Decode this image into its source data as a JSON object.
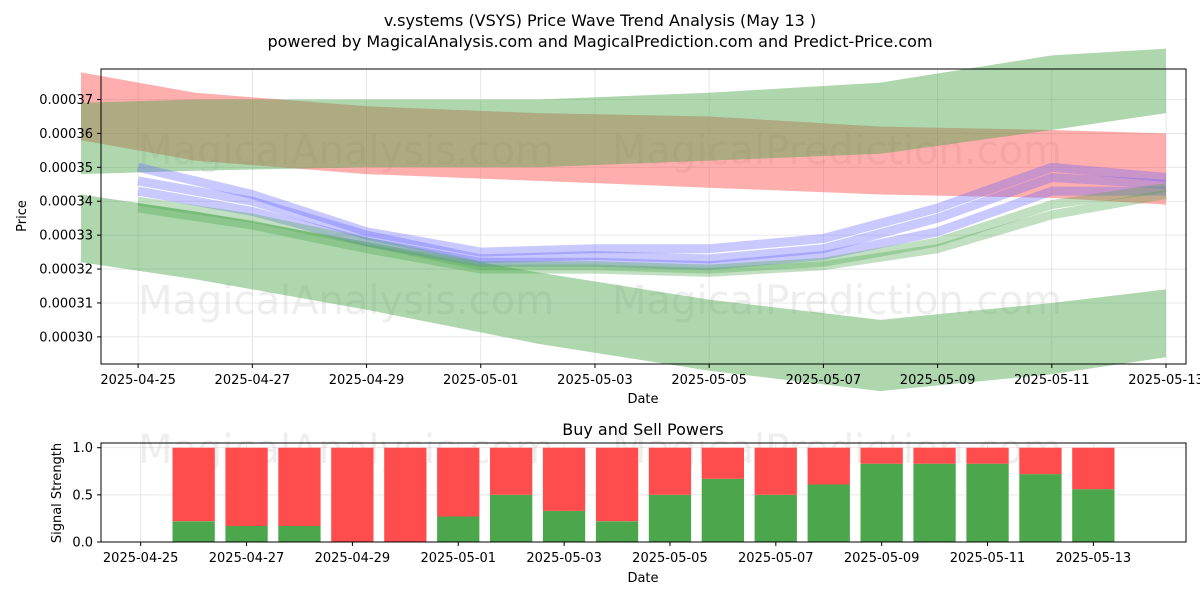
{
  "header": {
    "title": "v.systems (VSYS) Price Wave Trend Analysis (May 13 )",
    "subtitle": "powered by MagicalAnalysis.com and MagicalPrediction.com and Predict-Price.com"
  },
  "watermarks": [
    "MagicalAnalysis.com",
    "MagicalPrediction.com"
  ],
  "colors": {
    "red": "#ff4c4c",
    "green": "#4ca64c",
    "blue": "#6464ff",
    "grid": "#e0e0e0"
  },
  "chart_data": [
    {
      "type": "line",
      "title": "",
      "xlabel": "Date",
      "ylabel": "Price",
      "x_ticks": [
        "2025-04-25",
        "2025-04-27",
        "2025-04-29",
        "2025-05-01",
        "2025-05-03",
        "2025-05-05",
        "2025-05-07",
        "2025-05-09",
        "2025-05-11",
        "2025-05-13"
      ],
      "y_ticks": [
        "0.00030",
        "0.00031",
        "0.00032",
        "0.00033",
        "0.00034",
        "0.00035",
        "0.00036",
        "0.00037"
      ],
      "xlim": [
        "2025-04-24",
        "2025-05-13"
      ],
      "ylim": [
        0.000292,
        0.000379
      ],
      "grid": true,
      "bands": [
        {
          "color": "red",
          "x": [
            "2025-04-24",
            "2025-04-26",
            "2025-04-29",
            "2025-05-02",
            "2025-05-05",
            "2025-05-08",
            "2025-05-11",
            "2025-05-13"
          ],
          "upper": [
            0.000378,
            0.000372,
            0.000368,
            0.000366,
            0.000365,
            0.000362,
            0.000361,
            0.00036
          ],
          "lower": [
            0.000358,
            0.000352,
            0.000348,
            0.000346,
            0.000344,
            0.000342,
            0.000341,
            0.000339
          ]
        },
        {
          "color": "green",
          "x": [
            "2025-04-24",
            "2025-04-26",
            "2025-04-29",
            "2025-05-02",
            "2025-05-05",
            "2025-05-08",
            "2025-05-11",
            "2025-05-13"
          ],
          "upper": [
            0.000369,
            0.00037,
            0.00037,
            0.00037,
            0.000372,
            0.000375,
            0.000383,
            0.000385
          ],
          "lower": [
            0.000348,
            0.000349,
            0.00035,
            0.00035,
            0.000352,
            0.000354,
            0.000361,
            0.000366
          ]
        },
        {
          "color": "green",
          "x": [
            "2025-04-24",
            "2025-04-26",
            "2025-04-29",
            "2025-05-02",
            "2025-05-05",
            "2025-05-08",
            "2025-05-11",
            "2025-05-13"
          ],
          "upper": [
            0.000342,
            0.000337,
            0.000328,
            0.000319,
            0.000311,
            0.000305,
            0.00031,
            0.000314
          ],
          "lower": [
            0.000322,
            0.000317,
            0.000308,
            0.000298,
            0.00029,
            0.000284,
            0.000289,
            0.000294
          ]
        }
      ],
      "series": [
        {
          "color": "blue",
          "x": [
            "2025-04-25",
            "2025-04-27",
            "2025-04-29",
            "2025-05-01",
            "2025-05-03",
            "2025-05-05",
            "2025-05-07",
            "2025-05-09",
            "2025-05-11",
            "2025-05-13"
          ],
          "values": [
            0.000346,
            0.00034,
            0.00033,
            0.000323,
            0.000324,
            0.000323,
            0.000326,
            0.000335,
            0.000347,
            0.000345
          ]
        },
        {
          "color": "blue",
          "x": [
            "2025-04-25",
            "2025-04-27",
            "2025-04-29",
            "2025-05-01",
            "2025-05-03",
            "2025-05-05",
            "2025-05-07",
            "2025-05-09",
            "2025-05-11",
            "2025-05-13"
          ],
          "values": [
            0.000343,
            0.000337,
            0.000328,
            0.000322,
            0.000322,
            0.000321,
            0.000324,
            0.000331,
            0.000343,
            0.000343
          ]
        },
        {
          "color": "blue",
          "x": [
            "2025-04-25",
            "2025-04-27",
            "2025-04-29",
            "2025-05-01",
            "2025-05-03",
            "2025-05-05",
            "2025-05-07",
            "2025-05-09",
            "2025-05-11",
            "2025-05-13"
          ],
          "values": [
            0.00035,
            0.000342,
            0.000331,
            0.000325,
            0.000326,
            0.000326,
            0.000329,
            0.000338,
            0.00035,
            0.000347
          ]
        },
        {
          "color": "green",
          "x": [
            "2025-04-25",
            "2025-04-27",
            "2025-04-29",
            "2025-05-01",
            "2025-05-03",
            "2025-05-05",
            "2025-05-07",
            "2025-05-09",
            "2025-05-11",
            "2025-05-13"
          ],
          "values": [
            0.00034,
            0.000335,
            0.000328,
            0.000321,
            0.000321,
            0.00032,
            0.000322,
            0.000328,
            0.000339,
            0.000344
          ]
        },
        {
          "color": "green",
          "x": [
            "2025-04-25",
            "2025-04-27",
            "2025-04-29",
            "2025-05-01",
            "2025-05-03",
            "2025-05-05",
            "2025-05-07",
            "2025-05-09",
            "2025-05-11",
            "2025-05-13"
          ],
          "values": [
            0.000338,
            0.000333,
            0.000326,
            0.00032,
            0.00032,
            0.000319,
            0.000321,
            0.000326,
            0.000336,
            0.000342
          ]
        }
      ]
    },
    {
      "type": "bar",
      "title": "Buy and Sell Powers",
      "xlabel": "Date",
      "ylabel": "Signal Strength",
      "x_ticks": [
        "2025-04-25",
        "2025-04-27",
        "2025-04-29",
        "2025-05-01",
        "2025-05-03",
        "2025-05-05",
        "2025-05-07",
        "2025-05-09",
        "2025-05-11",
        "2025-05-13"
      ],
      "y_ticks": [
        "0.0",
        "0.5",
        "1.0"
      ],
      "xlim": [
        "2025-04-25",
        "2025-05-14"
      ],
      "ylim": [
        0,
        1.05
      ],
      "grid": true,
      "categories": [
        "2025-04-26",
        "2025-04-27",
        "2025-04-28",
        "2025-04-29",
        "2025-04-30",
        "2025-05-01",
        "2025-05-02",
        "2025-05-03",
        "2025-05-04",
        "2025-05-05",
        "2025-05-06",
        "2025-05-07",
        "2025-05-08",
        "2025-05-09",
        "2025-05-10",
        "2025-05-11",
        "2025-05-12",
        "2025-05-13"
      ],
      "series": [
        {
          "color": "green",
          "values": [
            0.22,
            0.17,
            0.17,
            0.0,
            0.0,
            0.27,
            0.5,
            0.33,
            0.22,
            0.5,
            0.67,
            0.5,
            0.61,
            0.83,
            0.83,
            0.83,
            0.72,
            0.56
          ]
        },
        {
          "color": "red",
          "values": [
            0.78,
            0.83,
            0.83,
            1.0,
            1.0,
            0.73,
            0.5,
            0.67,
            0.78,
            0.5,
            0.33,
            0.5,
            0.39,
            0.17,
            0.17,
            0.17,
            0.28,
            0.44
          ]
        }
      ]
    }
  ]
}
